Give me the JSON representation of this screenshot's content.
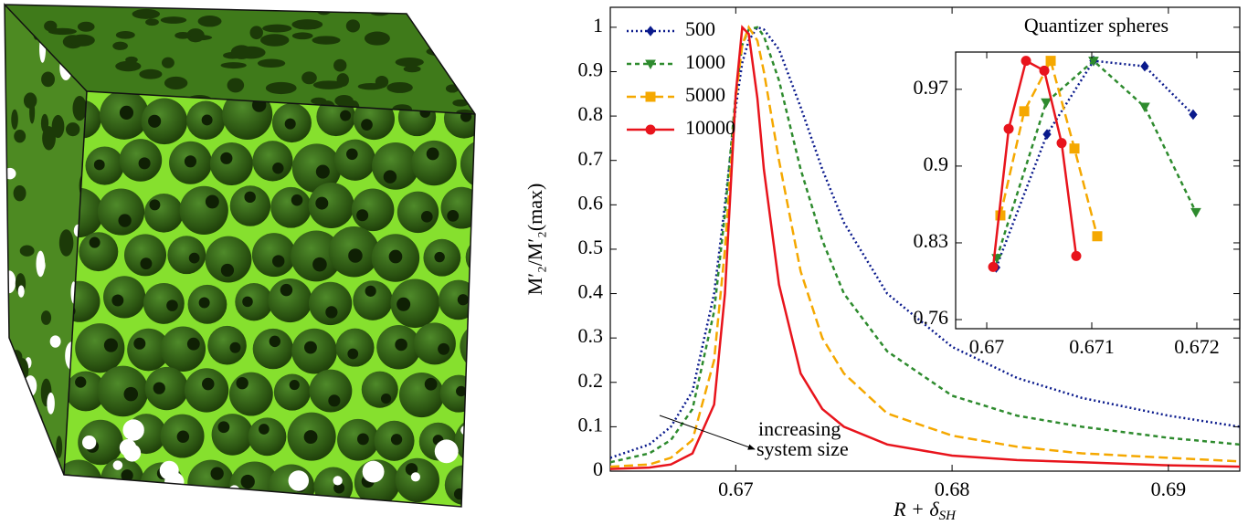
{
  "chart_data": [
    {
      "type": "line",
      "ylabel": "M′₂/M′₂(max)",
      "xlabel": {
        "main": "R + δ",
        "sub": "SH"
      },
      "annotation": [
        "increasing",
        "system size"
      ],
      "legend": "upper left",
      "xlim": [
        0.6642,
        0.6933
      ],
      "ylim": [
        0,
        1.045
      ],
      "xticks": [
        0.67,
        0.68,
        0.69
      ],
      "yticks": [
        0,
        0.1,
        0.2,
        0.3,
        0.4,
        0.5,
        0.6,
        0.7,
        0.8,
        0.9,
        1
      ],
      "x": [
        0.6642,
        0.666,
        0.667,
        0.668,
        0.669,
        0.6695,
        0.67,
        0.6703,
        0.6706,
        0.671,
        0.6713,
        0.672,
        0.673,
        0.674,
        0.675,
        0.677,
        0.68,
        0.683,
        0.686,
        0.69,
        0.6933
      ],
      "series": [
        {
          "name": "500",
          "color": "#0a1a8c",
          "linestyle": "dotted",
          "marker": "diamond",
          "values": [
            0.03,
            0.06,
            0.1,
            0.18,
            0.4,
            0.6,
            0.82,
            0.92,
            0.97,
            1.0,
            0.995,
            0.95,
            0.82,
            0.68,
            0.56,
            0.4,
            0.28,
            0.21,
            0.165,
            0.125,
            0.1
          ]
        },
        {
          "name": "1000",
          "color": "#2e8b2e",
          "linestyle": "dashed",
          "marker": "triangle",
          "values": [
            0.02,
            0.04,
            0.07,
            0.14,
            0.36,
            0.58,
            0.85,
            0.96,
            0.995,
            1.0,
            0.98,
            0.88,
            0.68,
            0.52,
            0.4,
            0.27,
            0.17,
            0.125,
            0.1,
            0.075,
            0.06
          ]
        },
        {
          "name": "5000",
          "color": "#f5a800",
          "linestyle": "longdash",
          "marker": "square",
          "values": [
            0.01,
            0.015,
            0.03,
            0.07,
            0.25,
            0.5,
            0.84,
            0.96,
            1.0,
            0.97,
            0.9,
            0.7,
            0.45,
            0.3,
            0.22,
            0.13,
            0.08,
            0.055,
            0.04,
            0.03,
            0.022
          ]
        },
        {
          "name": "10000",
          "color": "#e8141c",
          "linestyle": "solid",
          "marker": "circle",
          "values": [
            0.005,
            0.008,
            0.015,
            0.04,
            0.15,
            0.4,
            0.85,
            1.0,
            0.985,
            0.84,
            0.68,
            0.42,
            0.22,
            0.14,
            0.1,
            0.06,
            0.035,
            0.025,
            0.02,
            0.013,
            0.01
          ]
        }
      ]
    },
    {
      "type": "line",
      "title": "Quantizer spheres",
      "xlim": [
        0.669704,
        0.672409
      ],
      "ylim": [
        0.7517,
        1.004
      ],
      "xticks": [
        0.67,
        0.671,
        0.672
      ],
      "yticks": [
        0.76,
        0.83,
        0.9,
        0.97
      ],
      "series": [
        {
          "color": "#0a1a8c",
          "linestyle": "dotted",
          "marker": "diamond",
          "x": [
            0.67009,
            0.670574,
            0.671017,
            0.671504,
            0.671965
          ],
          "values": [
            0.8075,
            0.929,
            0.996,
            0.991,
            0.947
          ]
        },
        {
          "color": "#2e8b2e",
          "linestyle": "dashed",
          "marker": "triangle",
          "x": [
            0.670096,
            0.670565,
            0.671017,
            0.671504,
            0.671991
          ],
          "values": [
            0.816,
            0.958,
            0.996,
            0.954,
            0.858
          ]
        },
        {
          "color": "#f5a800",
          "linestyle": "longdash",
          "marker": "square",
          "x": [
            0.67013,
            0.670357,
            0.670609,
            0.670835,
            0.671052
          ],
          "values": [
            0.855,
            0.95,
            0.996,
            0.916,
            0.836
          ]
        },
        {
          "color": "#e8141c",
          "linestyle": "solid",
          "marker": "circle",
          "x": [
            0.670061,
            0.670209,
            0.670374,
            0.670548,
            0.670713,
            0.670852
          ],
          "values": [
            0.808,
            0.934,
            0.996,
            0.987,
            0.921,
            0.818
          ]
        }
      ]
    }
  ]
}
